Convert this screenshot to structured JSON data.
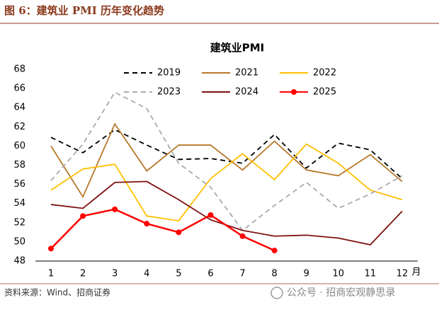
{
  "header": {
    "title": "图 6：建筑业 PMI 历年变化趋势"
  },
  "chart_data": {
    "type": "line",
    "title": "建筑业PMI",
    "categories": [
      "1",
      "2",
      "3",
      "4",
      "5",
      "6",
      "7",
      "8",
      "9",
      "10",
      "11",
      "12"
    ],
    "x_unit": "月",
    "ylim": [
      48,
      68
    ],
    "yticks": [
      48,
      50,
      52,
      54,
      56,
      58,
      60,
      62,
      64,
      66,
      68
    ],
    "series": [
      {
        "name": "2019",
        "color": "#000000",
        "dash": true,
        "marker": false,
        "values": [
          60.9,
          59.3,
          61.7,
          60.1,
          58.6,
          58.7,
          58.2,
          61.2,
          57.7,
          60.3,
          59.6,
          56.6
        ]
      },
      {
        "name": "2021",
        "color": "#b8782b",
        "dash": false,
        "marker": false,
        "values": [
          60.0,
          54.7,
          62.3,
          57.4,
          60.1,
          60.1,
          57.5,
          60.5,
          57.5,
          56.9,
          59.1,
          56.3
        ]
      },
      {
        "name": "2022",
        "color": "#ffc000",
        "dash": false,
        "marker": false,
        "values": [
          55.4,
          57.6,
          58.1,
          52.7,
          52.2,
          56.6,
          59.2,
          56.5,
          60.2,
          58.2,
          55.4,
          54.4
        ]
      },
      {
        "name": "2023",
        "color": "#aaaaaa",
        "dash": true,
        "marker": false,
        "values": [
          56.4,
          60.2,
          65.6,
          63.9,
          58.2,
          55.7,
          51.2,
          53.8,
          56.2,
          53.5,
          55.0,
          56.9
        ]
      },
      {
        "name": "2024",
        "color": "#7f1010",
        "dash": false,
        "marker": false,
        "values": [
          53.9,
          53.5,
          56.2,
          56.3,
          54.4,
          52.3,
          51.2,
          50.6,
          50.7,
          50.4,
          49.7,
          53.2
        ]
      },
      {
        "name": "2025",
        "color": "#ff0000",
        "dash": false,
        "marker": true,
        "values": [
          49.3,
          52.7,
          53.4,
          51.9,
          51.0,
          52.8,
          50.6,
          49.1,
          null,
          null,
          null,
          null
        ]
      }
    ]
  },
  "footer": {
    "source": "资料来源：Wind、招商证券",
    "watermark": "公众号 · 招商宏观静思录"
  }
}
